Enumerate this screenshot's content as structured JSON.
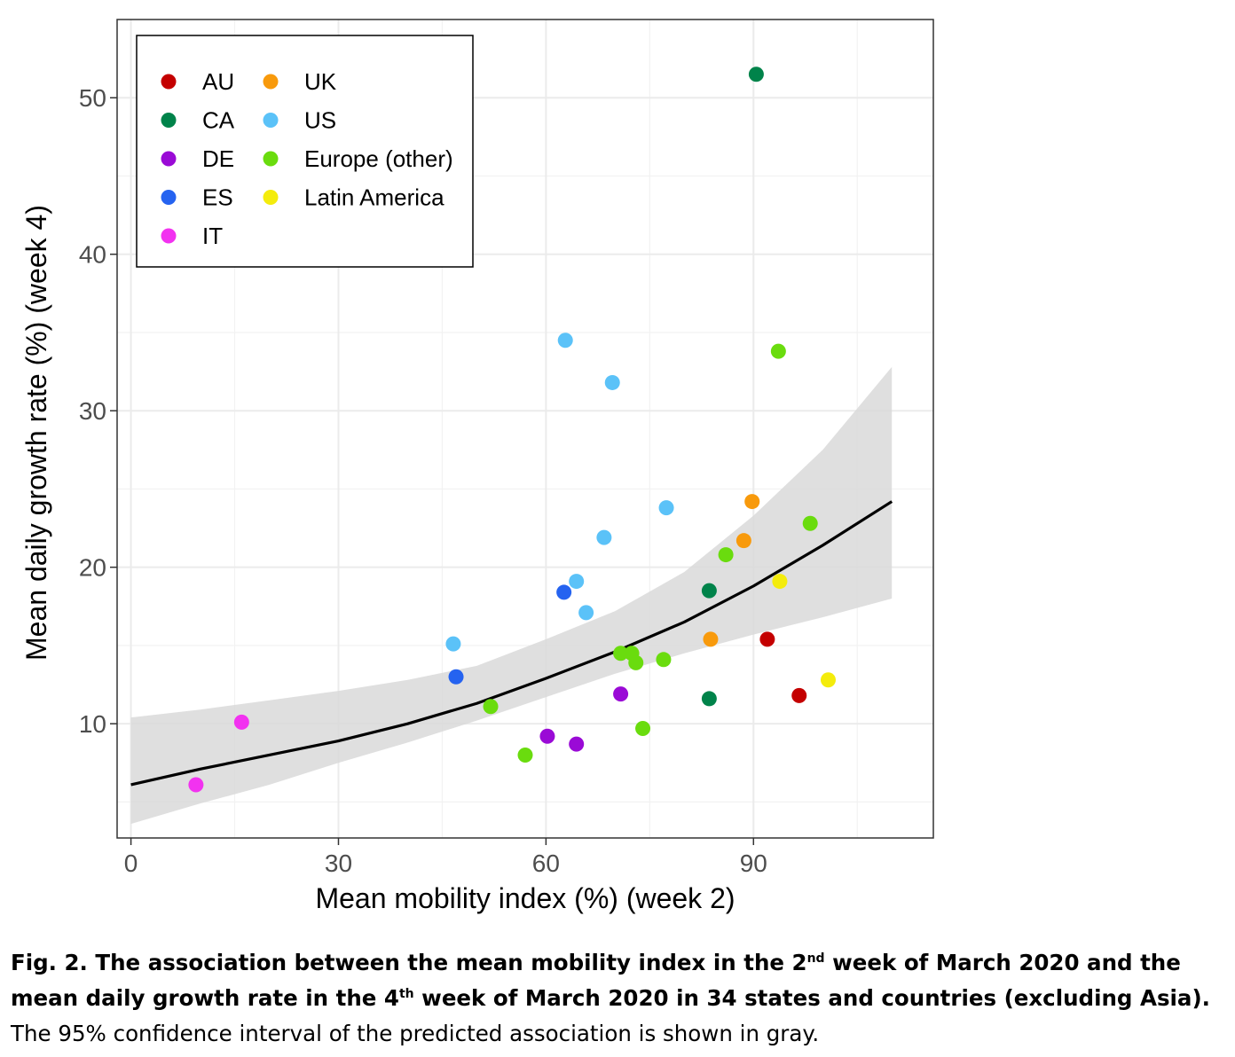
{
  "chart_data": {
    "type": "scatter",
    "xlabel": "Mean mobility index (%) (week 2)",
    "ylabel": "Mean daily growth rate (%) (week 4)",
    "xlim": [
      -2,
      116
    ],
    "ylim": [
      2.7,
      55
    ],
    "x_ticks": [
      0,
      30,
      60,
      90
    ],
    "y_ticks": [
      10,
      20,
      30,
      40,
      50
    ],
    "grid": true,
    "legend_position": "top-left",
    "legend": [
      {
        "label": "AU",
        "color": "#c40000"
      },
      {
        "label": "UK",
        "color": "#f89a0c"
      },
      {
        "label": "CA",
        "color": "#00834a"
      },
      {
        "label": "US",
        "color": "#5bc2f8"
      },
      {
        "label": "DE",
        "color": "#9a0ad6"
      },
      {
        "label": "Europe (other)",
        "color": "#6adc0e"
      },
      {
        "label": "ES",
        "color": "#2563f0"
      },
      {
        "label": "Latin America",
        "color": "#f4ec0c"
      },
      {
        "label": "IT",
        "color": "#f232f0"
      }
    ],
    "fit_line": {
      "x": [
        0,
        10,
        20,
        30,
        40,
        50,
        60,
        70,
        80,
        90,
        100,
        110
      ],
      "y": [
        6.1,
        7.1,
        8.0,
        8.9,
        10.0,
        11.3,
        12.9,
        14.6,
        16.5,
        18.8,
        21.4,
        24.2
      ],
      "ci_lower": [
        3.6,
        4.9,
        6.1,
        7.5,
        8.8,
        10.2,
        11.7,
        13.2,
        14.5,
        15.7,
        16.8,
        18.0
      ],
      "ci_upper": [
        10.4,
        10.9,
        11.5,
        12.1,
        12.8,
        13.7,
        15.4,
        17.2,
        19.7,
        23.3,
        27.5,
        32.8
      ],
      "ci_label": "95% confidence interval"
    },
    "series": [
      {
        "name": "AU",
        "color": "#c40000",
        "points": [
          [
            92.0,
            15.4
          ],
          [
            96.6,
            11.8
          ]
        ]
      },
      {
        "name": "CA",
        "color": "#00834a",
        "points": [
          [
            90.4,
            51.5
          ],
          [
            83.6,
            18.5
          ],
          [
            83.6,
            11.6
          ]
        ]
      },
      {
        "name": "DE",
        "color": "#9a0ad6",
        "points": [
          [
            70.8,
            11.9
          ],
          [
            60.2,
            9.2
          ],
          [
            64.4,
            8.7
          ]
        ]
      },
      {
        "name": "ES",
        "color": "#2563f0",
        "points": [
          [
            62.6,
            18.4
          ],
          [
            47.0,
            13.0
          ]
        ]
      },
      {
        "name": "IT",
        "color": "#f232f0",
        "points": [
          [
            16.0,
            10.1
          ],
          [
            9.4,
            6.1
          ]
        ]
      },
      {
        "name": "UK",
        "color": "#f89a0c",
        "points": [
          [
            89.8,
            24.2
          ],
          [
            88.6,
            21.7
          ],
          [
            83.8,
            15.4
          ]
        ]
      },
      {
        "name": "US",
        "color": "#5bc2f8",
        "points": [
          [
            62.8,
            34.5
          ],
          [
            69.6,
            31.8
          ],
          [
            77.4,
            23.8
          ],
          [
            68.4,
            21.9
          ],
          [
            64.4,
            19.1
          ],
          [
            65.8,
            17.1
          ],
          [
            46.6,
            15.1
          ]
        ]
      },
      {
        "name": "Europe (other)",
        "color": "#6adc0e",
        "points": [
          [
            93.6,
            33.8
          ],
          [
            98.2,
            22.8
          ],
          [
            86.0,
            20.8
          ],
          [
            77.0,
            14.1
          ],
          [
            70.8,
            14.5
          ],
          [
            72.4,
            14.5
          ],
          [
            73.0,
            13.9
          ],
          [
            52.0,
            11.1
          ],
          [
            74.0,
            9.7
          ],
          [
            57.0,
            8.0
          ]
        ]
      },
      {
        "name": "Latin America",
        "color": "#f4ec0c",
        "points": [
          [
            93.8,
            19.1
          ],
          [
            100.8,
            12.8
          ]
        ]
      }
    ]
  },
  "caption": {
    "bold_part1": "Fig. 2. The association between the mean mobility index in the 2",
    "sup1": "nd",
    "bold_part2": " week of March 2020 and the mean daily growth rate in the 4",
    "sup2": "th",
    "bold_part3": " week of March 2020 in 34 states and countries (excluding Asia).",
    "normal_part": " The 95% confidence interval of the predicted association is shown in gray."
  }
}
